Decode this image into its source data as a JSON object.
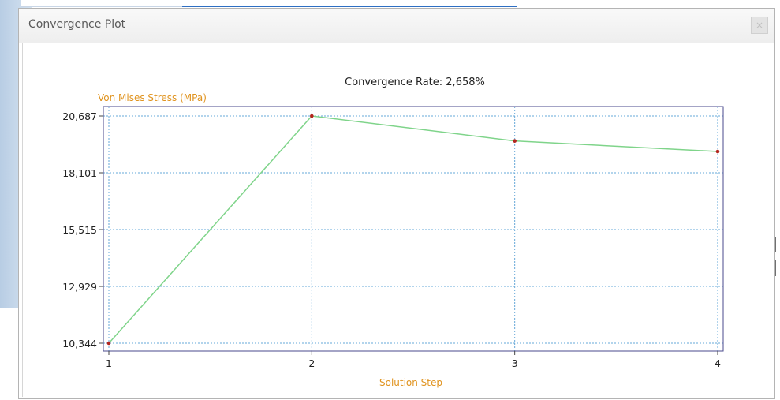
{
  "window": {
    "title": "Convergence Plot",
    "close_symbol": "×"
  },
  "chart_data": {
    "type": "line",
    "title": "Convergence Rate: 2,658%",
    "xlabel": "Solution Step",
    "ylabel": "Von Mises Stress (MPa)",
    "x": [
      1,
      2,
      3,
      4
    ],
    "y": [
      10.344,
      20.687,
      19.55,
      19.07
    ],
    "xticks": [
      "1",
      "2",
      "3",
      "4"
    ],
    "yticks": [
      10.344,
      12.929,
      15.515,
      18.101,
      20.687
    ],
    "ytick_labels": [
      "10,344",
      "12,929",
      "15,515",
      "18,101",
      "20,687"
    ],
    "xlim": [
      1,
      4
    ],
    "ylim": [
      10.344,
      20.687
    ],
    "grid": true,
    "colors": {
      "line": "#7fd48a",
      "marker": "#b3261e",
      "axis_title": "#e0931e",
      "grid": "#66a8d8",
      "frame": "#4a4a8c"
    }
  }
}
